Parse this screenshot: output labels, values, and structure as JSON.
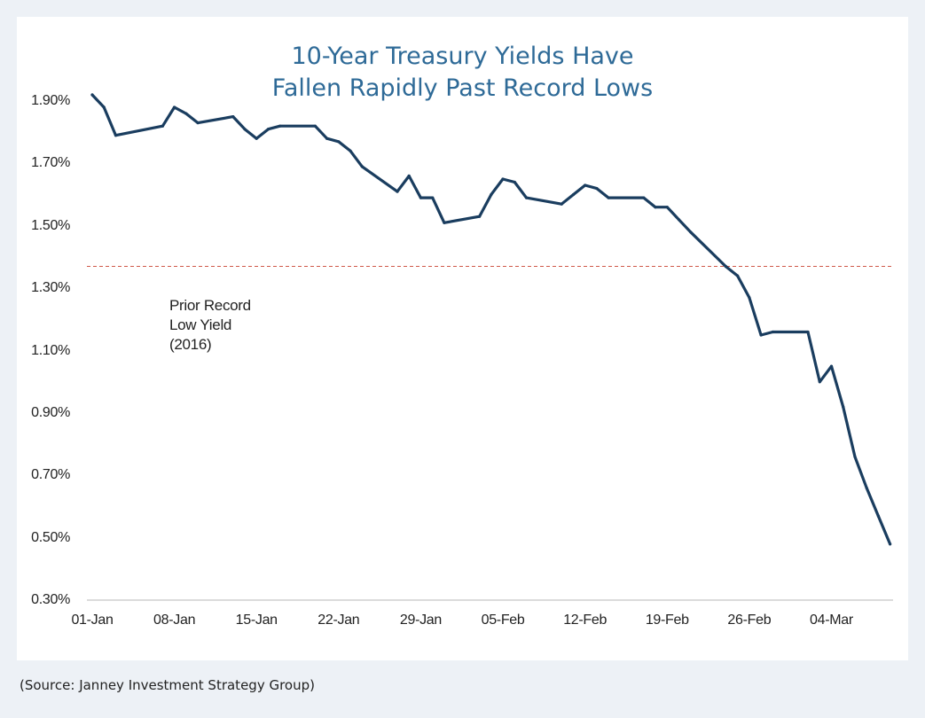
{
  "chart_data": {
    "type": "line",
    "title": "10-Year Treasury Yields Have Fallen Rapidly Past Record Lows",
    "title_lines": [
      "10-Year Treasury Yields Have",
      "Fallen Rapidly Past Record Lows"
    ],
    "xlabel": "",
    "ylabel": "",
    "ylim": [
      0.3,
      2.0
    ],
    "y_ticks": [
      "0.30%",
      "0.50%",
      "0.70%",
      "0.90%",
      "1.10%",
      "1.30%",
      "1.50%",
      "1.70%",
      "1.90%"
    ],
    "y_tick_values": [
      0.3,
      0.5,
      0.7,
      0.9,
      1.1,
      1.3,
      1.5,
      1.7,
      1.9
    ],
    "x_ticks": [
      "01-Jan",
      "08-Jan",
      "15-Jan",
      "22-Jan",
      "29-Jan",
      "05-Feb",
      "12-Feb",
      "19-Feb",
      "26-Feb",
      "04-Mar"
    ],
    "x_tick_days": [
      0,
      7,
      14,
      21,
      28,
      35,
      42,
      49,
      56,
      63
    ],
    "x_range_days": [
      0,
      68
    ],
    "grid": false,
    "series": [
      {
        "name": "10-Year Treasury Yield",
        "color": "#1a3d5f",
        "days": [
          0,
          1,
          2,
          6,
          7,
          8,
          9,
          12,
          13,
          14,
          15,
          16,
          19,
          20,
          21,
          22,
          23,
          26,
          27,
          28,
          29,
          30,
          33,
          34,
          35,
          36,
          37,
          40,
          41,
          42,
          43,
          44,
          47,
          48,
          49,
          50,
          51,
          54,
          55,
          56,
          57,
          58,
          61,
          62,
          63,
          64,
          65,
          66,
          67,
          68
        ],
        "values": [
          1.92,
          1.88,
          1.79,
          1.82,
          1.88,
          1.86,
          1.83,
          1.85,
          1.81,
          1.78,
          1.81,
          1.82,
          1.82,
          1.78,
          1.77,
          1.74,
          1.69,
          1.61,
          1.66,
          1.59,
          1.59,
          1.51,
          1.53,
          1.6,
          1.65,
          1.64,
          1.59,
          1.57,
          1.6,
          1.63,
          1.62,
          1.59,
          1.59,
          1.56,
          1.56,
          1.52,
          1.48,
          1.37,
          1.34,
          1.27,
          1.15,
          1.16,
          1.16,
          1.0,
          1.05,
          0.92,
          0.76,
          0.66,
          0.57,
          0.48
        ]
      }
    ],
    "reference_line": {
      "value": 1.37,
      "style": "dashed",
      "color": "#d05a4a"
    },
    "annotation": {
      "lines": [
        "Prior Record",
        "Low Yield",
        "(2016)"
      ]
    },
    "source": "(Source: Janney Investment Strategy Group)"
  }
}
